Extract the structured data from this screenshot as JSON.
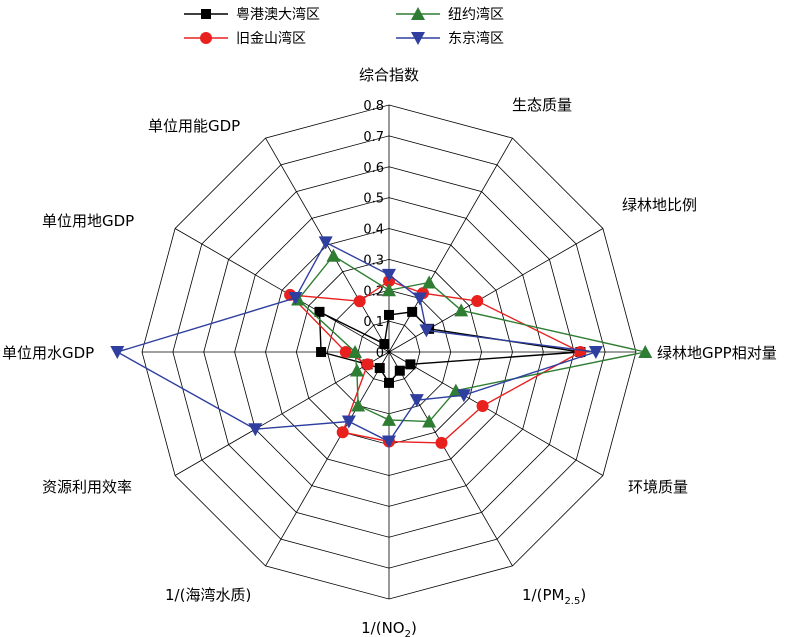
{
  "chart_data": {
    "type": "radar",
    "axes": [
      "综合指数",
      "生态质量",
      "绿林地比例",
      "绿林地GPP相对量",
      "环境质量",
      "1/(PM2.5)",
      "1/(NO2)",
      "1/(海湾水质)",
      "资源利用效率",
      "单位用水GDP",
      "单位用地GDP",
      "单位用能GDP"
    ],
    "tick_values": [
      "0",
      "0.1",
      "0.2",
      "0.3",
      "0.4",
      "0.5",
      "0.6",
      "0.7",
      "0.8"
    ],
    "rlim": [
      0,
      0.8
    ],
    "series": [
      {
        "name": "粤港澳大湾区",
        "color": "#000000",
        "marker": "square",
        "values": [
          0.12,
          0.15,
          0.15,
          0.62,
          0.08,
          0.07,
          0.1,
          0.06,
          0.08,
          0.22,
          0.26,
          0.03
        ]
      },
      {
        "name": "旧金山湾区",
        "color": "#e8211f",
        "marker": "circle",
        "values": [
          0.23,
          0.22,
          0.33,
          0.62,
          0.35,
          0.34,
          0.29,
          0.3,
          0.08,
          0.14,
          0.37,
          0.19
        ]
      },
      {
        "name": "纽约湾区",
        "color": "#2e7d32",
        "marker": "triangle-up",
        "values": [
          0.2,
          0.26,
          0.27,
          0.83,
          0.25,
          0.26,
          0.22,
          0.2,
          0.12,
          0.11,
          0.34,
          0.36
        ]
      },
      {
        "name": "东京湾区",
        "color": "#2f3fa0",
        "marker": "triangle-down",
        "values": [
          0.25,
          0.2,
          0.14,
          0.67,
          0.28,
          0.18,
          0.29,
          0.26,
          0.5,
          0.88,
          0.35,
          0.41
        ]
      }
    ],
    "legend_position": "top",
    "grid": true
  }
}
